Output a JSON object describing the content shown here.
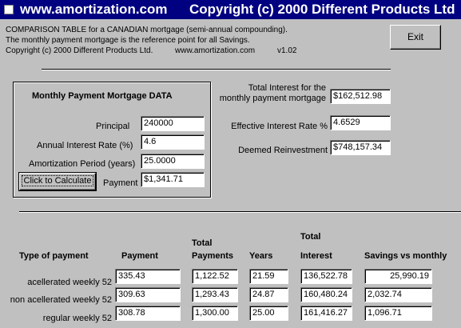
{
  "window": {
    "site": "www.amortization.com",
    "copyright": "Copyright (c) 2000 Different Products Ltd"
  },
  "header": {
    "line1": "COMPARISON TABLE for a CANADIAN mortgage (semi-annual compounding).",
    "line2": "The monthly payment mortgage is the reference point for all Savings.",
    "line3_copyright": "Copyright (c) 2000 Different Products Ltd.",
    "line3_site": "www.amortization.com",
    "line3_version": "v1.02"
  },
  "exit_label": "Exit",
  "monthly": {
    "title": "Monthly Payment Mortgage DATA",
    "principal_label": "Principal",
    "principal": "240000",
    "rate_label": "Annual Interest Rate (%)",
    "rate": "4.6",
    "period_label": "Amortization Period (years)",
    "period": "25.0000",
    "calc_label": "Click to Calculate",
    "payment_label": "Payment",
    "payment": "$1,341.71"
  },
  "summary": {
    "total_interest_label_1": "Total Interest for the",
    "total_interest_label_2": "monthly payment mortgage",
    "total_interest": "$162,512.98",
    "effective_rate_label": "Effective Interest Rate %",
    "effective_rate": "4.6529",
    "deemed_label": "Deemed Reinvestment",
    "deemed": "$748,157.34"
  },
  "table": {
    "headers": {
      "type": "Type of payment",
      "payment": "Payment",
      "total_payments_1": "Total",
      "total_payments_2": "Payments",
      "years": "Years",
      "total_interest_1": "Total",
      "total_interest_2": "Interest",
      "savings": "Savings vs monthly"
    },
    "rows": [
      {
        "label": "acellerated weekly 52",
        "payment": "335.43",
        "total_payments": "1,122.52",
        "years": "21.59",
        "total_interest": "136,522.78",
        "savings": "25,990.19"
      },
      {
        "label": "non acellerated weekly 52",
        "payment": "309.63",
        "total_payments": "1,293.43",
        "years": "24.87",
        "total_interest": "160,480.24",
        "savings": "2,032.74"
      },
      {
        "label": "regular weekly 52",
        "payment": "308.78",
        "total_payments": "1,300.00",
        "years": "25.00",
        "total_interest": "161,416.27",
        "savings": "1,096.71"
      }
    ]
  }
}
